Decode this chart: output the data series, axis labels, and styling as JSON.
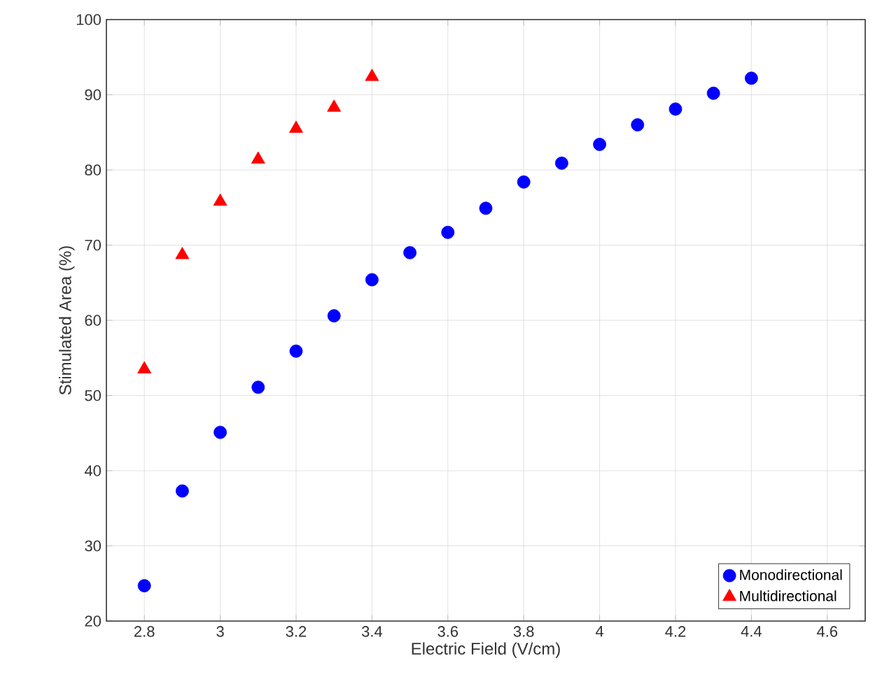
{
  "chart_data": {
    "type": "scatter",
    "xlabel": "Electric Field (V/cm)",
    "ylabel": "Stimulated Area (%)",
    "xlim": [
      2.7,
      4.7
    ],
    "xticks": [
      2.8,
      3,
      3.2,
      3.4,
      3.6,
      3.8,
      4,
      4.2,
      4.4,
      4.6
    ],
    "ylim": [
      20,
      100
    ],
    "yticks": [
      20,
      30,
      40,
      50,
      60,
      70,
      80,
      90,
      100
    ],
    "grid": true,
    "legend": "bottom right",
    "series": [
      {
        "name": "Monodirectional",
        "color": "#0000ff",
        "marker": "circle",
        "x": [
          2.8,
          2.9,
          3.0,
          3.1,
          3.2,
          3.3,
          3.4,
          3.5,
          3.6,
          3.7,
          3.8,
          3.9,
          4.0,
          4.1,
          4.2,
          4.3,
          4.4
        ],
        "values": [
          24.7,
          37.3,
          45.1,
          51.1,
          55.9,
          60.6,
          65.4,
          69.0,
          71.7,
          74.9,
          78.4,
          80.9,
          83.4,
          86.0,
          88.1,
          90.2,
          92.2
        ]
      },
      {
        "name": "Multidirectional",
        "color": "#ff0000",
        "marker": "triangle",
        "x": [
          2.8,
          2.9,
          3.0,
          3.1,
          3.2,
          3.3,
          3.4
        ],
        "values": [
          53.5,
          68.7,
          75.8,
          81.4,
          85.5,
          88.3,
          92.4
        ]
      }
    ]
  }
}
